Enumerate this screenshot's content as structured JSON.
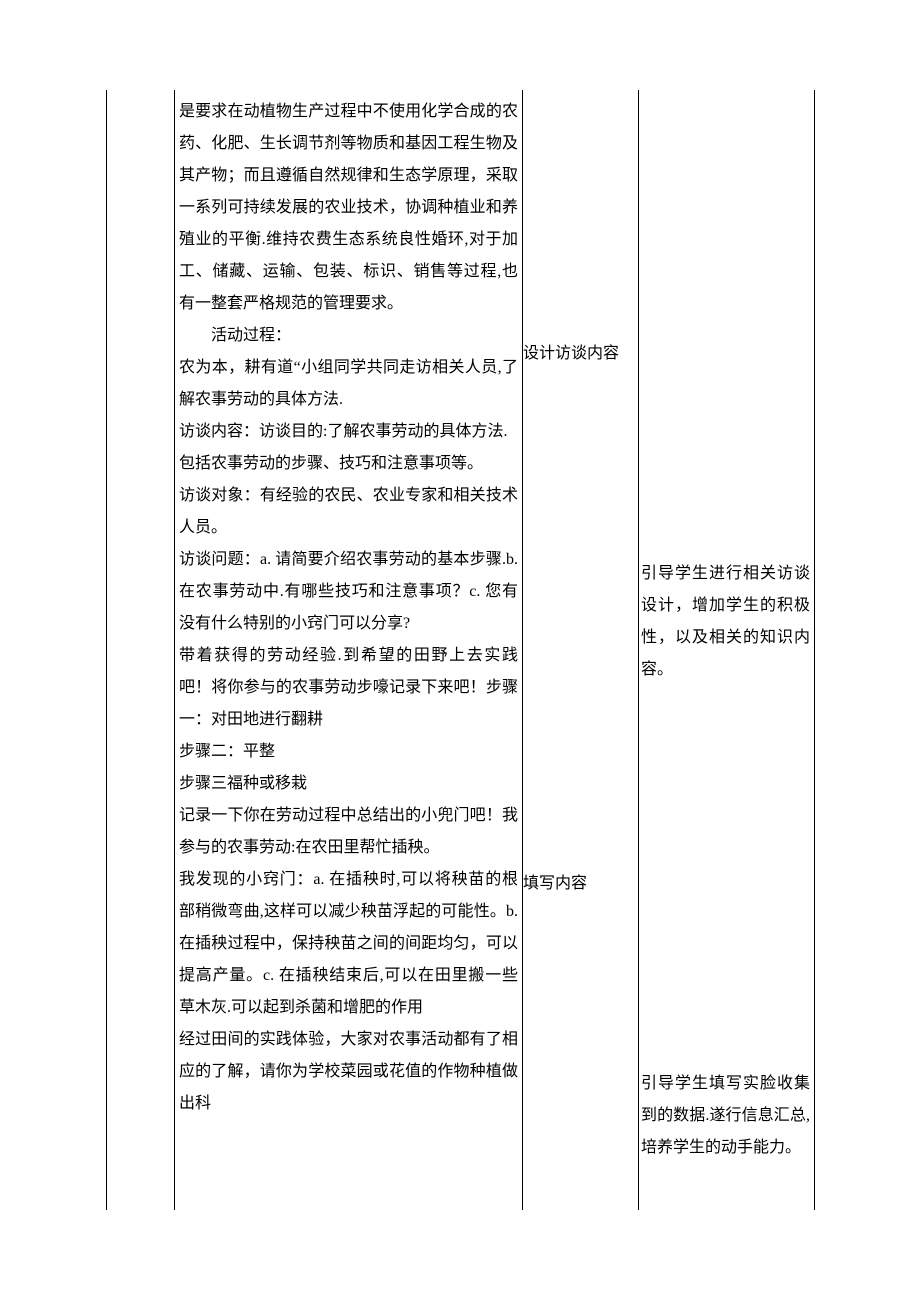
{
  "col1": {
    "p1": "是要求在动植物生产过程中不使用化学合成的农药、化肥、生长调节剂等物质和基因工程生物及其产物；而且遵循自然规律和生态学原理，采取一系列可持续发展的农业技术，协调种植业和养殖业的平衡.维持农费生态系统良性婚环,对于加工、储藏、运输、包装、标识、销售等过程,也有一整套严格规范的管理要求。",
    "p2_label": "活动过程：",
    "p3": "农为本，耕有道“小组同学共同走访相关人员,了解农事劳动的具体方法.",
    "p4": "访谈内容：访谈目的:了解农事劳动的具体方法.",
    "p5": "包括农事劳动的步骤、技巧和注意事项等。",
    "p6": "访谈对象：有经验的农民、农业专家和相关技术人员。",
    "p7": "访谈问题：a. 请简要介绍农事劳动的基本步骤.b. 在农事劳动中.有哪些技巧和注意事项？c. 您有没有什么特别的小窍门可以分享?",
    "p8": "带着获得的劳动经验.到希望的田野上去实践吧！将你参与的农事劳动步嚎记录下来吧！步骤一：对田地进行翻耕",
    "p9": "步骤二：平整",
    "p10": "步骤三福种或移栽",
    "p11": "记录一下你在劳动过程中总结出的小兜门吧！我参与的农事劳动:在农田里帮忙插秧。",
    "p12": "我发现的小窍门：a. 在插秧时,可以将秧苗的根部稍微弯曲,这样可以减少秧苗浮起的可能性。b. 在插秧过程中，保持秧苗之间的间距均匀，可以提高产量。c. 在插秧结束后,可以在田里搬一些草木灰.可以起到杀菌和增肥的作用",
    "p13": "经过田间的实践体验，大家对农事活动都有了相应的了解，请你为学校菜园或花值的作物种植做出科"
  },
  "col2": {
    "a": "设计访谈内容",
    "b": "填写内容"
  },
  "col3": {
    "c": "引导学生进行相关访谈设计，增加学生的积极性，以及相关的知识内容。",
    "d": "引导学生填写实脸收集到的数据.遂行信息汇总,培养学生的动手能力。"
  }
}
